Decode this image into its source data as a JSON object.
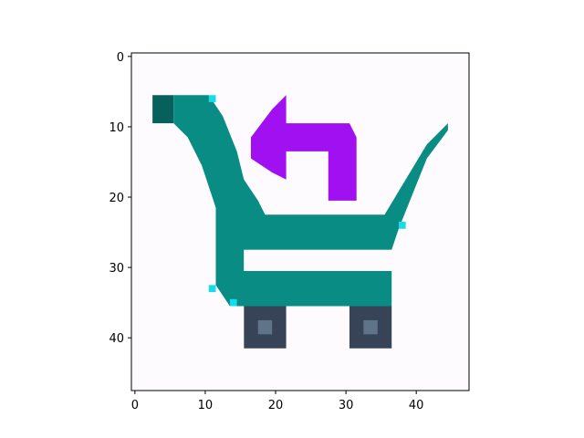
{
  "chart_data": {
    "type": "image",
    "xlim": [
      -0.5,
      47.5
    ],
    "ylim": [
      47.5,
      -0.5
    ],
    "y_axis_inverted": true,
    "xticks": [
      0,
      10,
      20,
      30,
      40
    ],
    "yticks": [
      0,
      10,
      20,
      30,
      40
    ],
    "xtick_labels": [
      "0",
      "10",
      "20",
      "30",
      "40"
    ],
    "ytick_labels": [
      "0",
      "10",
      "20",
      "30",
      "40"
    ],
    "grid": false,
    "image_size": [
      48,
      48
    ],
    "depicts": "pixel-art shopping cart with a return (left-turn) arrow",
    "colors": {
      "cart": "#088c84",
      "cart_dark": "#06615c",
      "highlight": "#14dce8",
      "arrow": "#a010f0",
      "wheel": "#374457",
      "wheel_center": "#5f7488",
      "background": "#fdfbfe"
    },
    "regions": [
      {
        "name": "cart-handle-dark",
        "color": "cart_dark",
        "x": [
          2.5,
          5.5
        ],
        "y": [
          5.5,
          9.5
        ]
      },
      {
        "name": "cart-frame",
        "color": "cart",
        "outline": [
          [
            5.5,
            5.5
          ],
          [
            10.5,
            5.5
          ],
          [
            12.5,
            8.5
          ],
          [
            14.5,
            13.5
          ],
          [
            15.5,
            17.5
          ],
          [
            17.5,
            20.5
          ],
          [
            18.5,
            22.5
          ],
          [
            35.5,
            22.5
          ],
          [
            38.5,
            17.5
          ],
          [
            41.5,
            12.5
          ],
          [
            44.5,
            9.5
          ],
          [
            44.5,
            10.5
          ],
          [
            41.5,
            14.5
          ],
          [
            39.5,
            19.5
          ],
          [
            37.5,
            24.5
          ],
          [
            36.5,
            27.5
          ],
          [
            15.5,
            27.5
          ],
          [
            15.5,
            30.5
          ],
          [
            36.5,
            30.5
          ],
          [
            36.5,
            35.5
          ],
          [
            13.5,
            35.5
          ],
          [
            11.5,
            32.5
          ],
          [
            11.5,
            21.5
          ],
          [
            9.5,
            15.5
          ],
          [
            7.5,
            11.5
          ],
          [
            5.5,
            9.5
          ]
        ]
      },
      {
        "name": "basket-cutout",
        "color": "background",
        "x": [
          15.5,
          36.5
        ],
        "y": [
          27.5,
          30.5
        ]
      },
      {
        "name": "back-arrow",
        "color": "arrow",
        "outline": [
          [
            21.5,
            5.5
          ],
          [
            21.5,
            9.5
          ],
          [
            30.5,
            9.5
          ],
          [
            31.5,
            11.5
          ],
          [
            31.5,
            20.5
          ],
          [
            27.5,
            20.5
          ],
          [
            27.5,
            13.5
          ],
          [
            21.5,
            13.5
          ],
          [
            21.5,
            17.5
          ],
          [
            19.5,
            16.5
          ],
          [
            16.5,
            14.5
          ],
          [
            16.5,
            11.5
          ],
          [
            19.5,
            7.5
          ]
        ]
      },
      {
        "name": "wheel-left",
        "color": "wheel",
        "x": [
          15.5,
          21.5
        ],
        "y": [
          35.5,
          41.5
        ]
      },
      {
        "name": "wheel-right",
        "color": "wheel",
        "x": [
          30.5,
          36.5
        ],
        "y": [
          35.5,
          41.5
        ]
      },
      {
        "name": "wheel-left-hub",
        "color": "wheel_center",
        "x": [
          17.5,
          19.5
        ],
        "y": [
          37.5,
          39.5
        ]
      },
      {
        "name": "wheel-right-hub",
        "color": "wheel_center",
        "x": [
          32.5,
          34.5
        ],
        "y": [
          37.5,
          39.5
        ]
      },
      {
        "name": "highlight-1",
        "color": "highlight",
        "x": [
          10.5,
          11.5
        ],
        "y": [
          5.5,
          6.5
        ]
      },
      {
        "name": "highlight-2",
        "color": "highlight",
        "x": [
          37.5,
          38.5
        ],
        "y": [
          23.5,
          24.5
        ]
      },
      {
        "name": "highlight-3",
        "color": "highlight",
        "x": [
          10.5,
          11.5
        ],
        "y": [
          32.5,
          33.5
        ]
      },
      {
        "name": "highlight-4",
        "color": "highlight",
        "x": [
          13.5,
          14.5
        ],
        "y": [
          34.5,
          35.5
        ]
      }
    ]
  }
}
